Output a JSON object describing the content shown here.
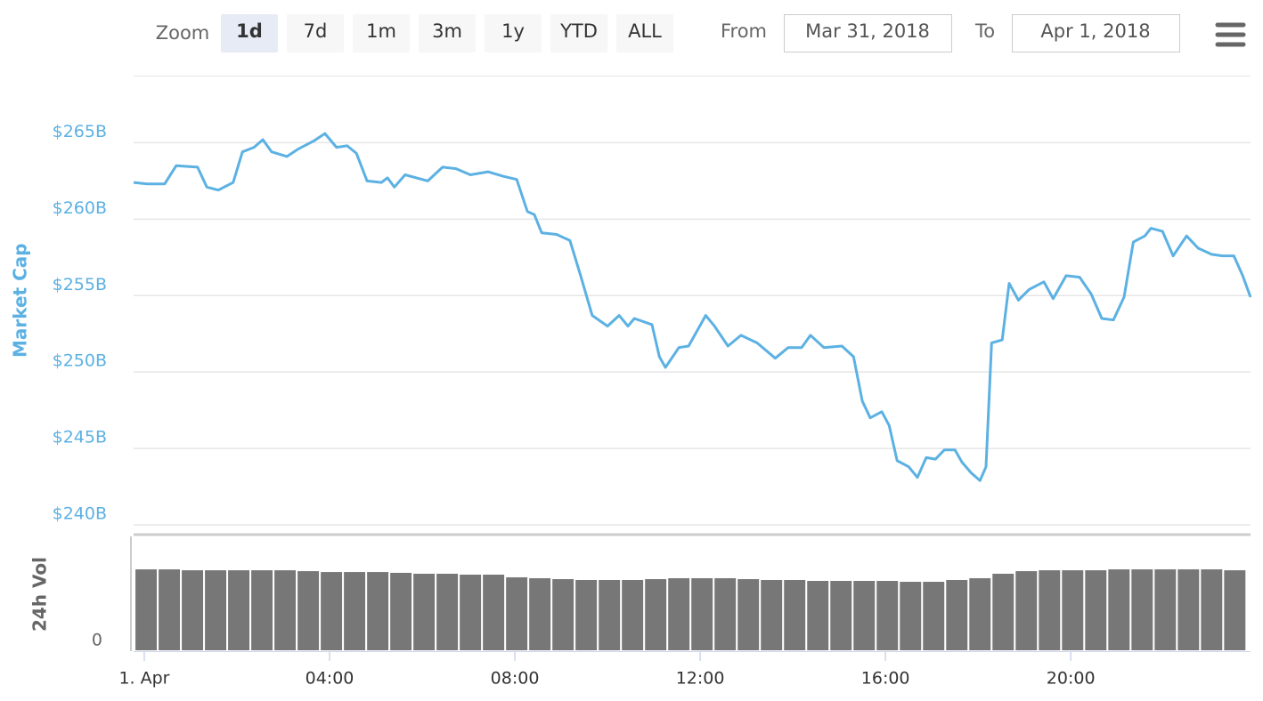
{
  "range_selector": {
    "label": "Zoom",
    "buttons": [
      "1d",
      "7d",
      "1m",
      "3m",
      "1y",
      "YTD",
      "ALL"
    ],
    "selected": 0,
    "from_label": "From",
    "from": "Mar 31, 2018",
    "to_label": "To",
    "to": "Apr 1, 2018"
  },
  "chart_data": [
    {
      "type": "line",
      "ylabel": "Market Cap",
      "color": "#5cb1e3",
      "x": [
        -0.23,
        0.06,
        0.44,
        0.69,
        1.15,
        1.35,
        1.6,
        1.92,
        2.12,
        2.37,
        2.56,
        2.75,
        3.08,
        3.33,
        3.65,
        3.9,
        4.15,
        4.38,
        4.58,
        4.81,
        5.12,
        5.25,
        5.4,
        5.63,
        6.12,
        6.44,
        6.73,
        7.04,
        7.42,
        7.75,
        8.04,
        8.27,
        8.42,
        8.58,
        8.9,
        9.19,
        9.42,
        9.67,
        10.0,
        10.25,
        10.44,
        10.58,
        10.96,
        11.12,
        11.25,
        11.54,
        11.75,
        12.12,
        12.31,
        12.6,
        12.88,
        13.23,
        13.62,
        13.9,
        14.19,
        14.38,
        14.67,
        15.06,
        15.31,
        15.5,
        15.67,
        15.92,
        16.08,
        16.25,
        16.5,
        16.69,
        16.88,
        17.08,
        17.27,
        17.5,
        17.65,
        17.85,
        18.04,
        18.17,
        18.29,
        18.52,
        18.67,
        18.87,
        19.1,
        19.42,
        19.62,
        19.9,
        20.19,
        20.44,
        20.67,
        20.92,
        21.15,
        21.35,
        21.6,
        21.73,
        21.98,
        22.21,
        22.5,
        22.75,
        23.04,
        23.27,
        23.52,
        23.71,
        23.88
      ],
      "values": [
        262.4,
        262.3,
        262.3,
        263.5,
        263.4,
        262.1,
        261.9,
        262.4,
        264.4,
        264.7,
        265.2,
        264.4,
        264.1,
        264.6,
        265.1,
        265.6,
        264.7,
        264.8,
        264.3,
        262.5,
        262.4,
        262.7,
        262.1,
        262.9,
        262.5,
        263.4,
        263.3,
        262.9,
        263.1,
        262.8,
        262.6,
        260.5,
        260.3,
        259.1,
        259.0,
        258.6,
        256.3,
        253.7,
        253.0,
        253.7,
        253.0,
        253.5,
        253.1,
        251.0,
        250.3,
        251.6,
        251.7,
        253.7,
        253.0,
        251.7,
        252.4,
        251.9,
        250.9,
        251.6,
        251.6,
        252.4,
        251.6,
        251.7,
        251.0,
        248.1,
        247.0,
        247.4,
        246.5,
        244.2,
        243.8,
        243.1,
        244.4,
        244.3,
        244.9,
        244.9,
        244.1,
        243.4,
        242.9,
        243.8,
        251.9,
        252.1,
        255.8,
        254.7,
        255.4,
        255.9,
        254.8,
        256.3,
        256.2,
        255.1,
        253.5,
        253.4,
        254.9,
        258.5,
        258.9,
        259.4,
        259.2,
        257.6,
        258.9,
        258.1,
        257.7,
        257.6,
        257.6,
        256.3,
        254.9
      ],
      "xlim": [
        -0.23,
        23.88
      ],
      "ylim": [
        240,
        269.36
      ],
      "yticks": [
        {
          "value": 240,
          "label": "$240B"
        },
        {
          "value": 245,
          "label": "$245B"
        },
        {
          "value": 250,
          "label": "$250B"
        },
        {
          "value": 255,
          "label": "$255B"
        },
        {
          "value": 260,
          "label": "$260B"
        },
        {
          "value": 265,
          "label": "$265B"
        }
      ],
      "grid": true
    },
    {
      "type": "bar",
      "ylabel": "24h Vol",
      "color": "#777777",
      "x": [
        0.04,
        0.54,
        1.04,
        1.54,
        2.04,
        2.54,
        3.04,
        3.54,
        4.04,
        4.54,
        5.04,
        5.54,
        6.04,
        6.54,
        7.04,
        7.54,
        8.04,
        8.54,
        9.04,
        9.54,
        10.04,
        10.54,
        11.04,
        11.54,
        12.04,
        12.54,
        13.04,
        13.54,
        14.04,
        14.54,
        15.04,
        15.54,
        16.04,
        16.54,
        17.04,
        17.54,
        18.04,
        18.54,
        19.04,
        19.54,
        20.04,
        20.54,
        21.04,
        21.54,
        22.04,
        22.54,
        23.04,
        23.54
      ],
      "values": [
        72.2,
        72.2,
        71.4,
        71.4,
        71.4,
        71.4,
        71.4,
        70.6,
        69.8,
        69.8,
        69.8,
        69.1,
        68.3,
        68.3,
        67.5,
        67.5,
        65.1,
        64.3,
        63.5,
        62.7,
        62.7,
        62.7,
        63.5,
        64.3,
        64.3,
        64.3,
        63.5,
        62.7,
        62.7,
        61.9,
        61.9,
        61.9,
        61.9,
        61.1,
        61.1,
        62.7,
        64.3,
        68.3,
        70.6,
        71.4,
        71.4,
        71.4,
        72.2,
        72.2,
        72.2,
        72.2,
        72.2,
        71.4
      ],
      "xlim": [
        -0.23,
        23.88
      ],
      "ylim": [
        0,
        100
      ],
      "yticks": [
        0
      ],
      "xticks": [
        {
          "value": 0,
          "label": "1. Apr"
        },
        {
          "value": 4,
          "label": "04:00"
        },
        {
          "value": 8,
          "label": "08:00"
        },
        {
          "value": 12,
          "label": "12:00"
        },
        {
          "value": 16,
          "label": "16:00"
        },
        {
          "value": 20,
          "label": "20:00"
        }
      ]
    }
  ]
}
